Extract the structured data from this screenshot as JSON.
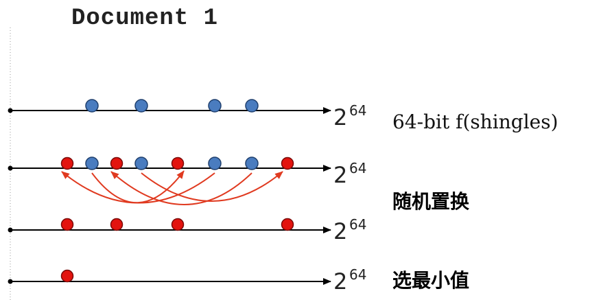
{
  "title": "Document 1",
  "axis_end_label": {
    "base": "2",
    "exponent": "64"
  },
  "annotations": {
    "row1": "64-bit f(shingles)",
    "row2": "随机置换",
    "row4": "选最小值"
  },
  "colors": {
    "blue_dot": "#4a7cbf",
    "red_dot": "#e3140f",
    "arrow": "#e03a20",
    "line": "#000000"
  }
}
